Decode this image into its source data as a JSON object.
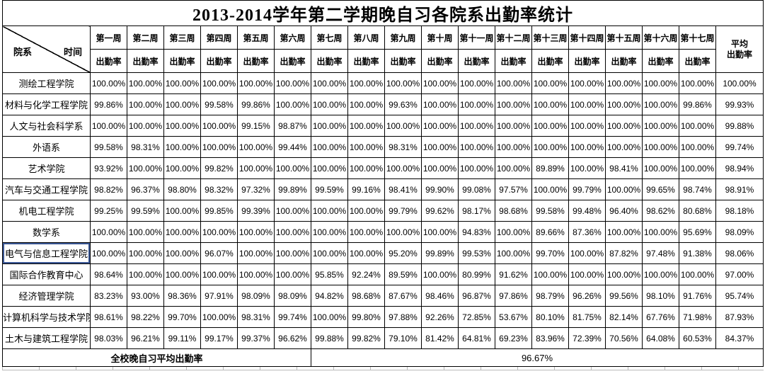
{
  "title": "2013-2014学年第二学期晚自习各院系出勤率统计",
  "header": {
    "corner": {
      "row_label": "院系",
      "col_label": "时间"
    },
    "weeks": [
      "第一周",
      "第二周",
      "第三周",
      "第四周",
      "第五周",
      "第六周",
      "第七周",
      "第八周",
      "第九周",
      "第十周",
      "第十一周",
      "第十二周",
      "第十三周",
      "第十四周",
      "第十五周",
      "第十六周",
      "第十七周"
    ],
    "sub_label": "出勤率",
    "avg_lines": [
      "平均",
      "出勤率"
    ]
  },
  "selection": {
    "department": "电气与信息工程学院"
  },
  "rows": [
    {
      "name": "测绘工程学院",
      "values": [
        "100.00%",
        "100.00%",
        "100.00%",
        "100.00%",
        "100.00%",
        "100.00%",
        "100.00%",
        "100.00%",
        "100.00%",
        "100.00%",
        "100.00%",
        "100.00%",
        "100.00%",
        "100.00%",
        "100.00%",
        "100.00%",
        "100.00%",
        "100.00%"
      ]
    },
    {
      "name": "材料与化学工程学院",
      "values": [
        "99.86%",
        "100.00%",
        "100.00%",
        "99.58%",
        "99.86%",
        "100.00%",
        "100.00%",
        "100.00%",
        "99.63%",
        "100.00%",
        "100.00%",
        "100.00%",
        "100.00%",
        "100.00%",
        "100.00%",
        "100.00%",
        "99.86%",
        "99.93%"
      ]
    },
    {
      "name": "人文与社会科学系",
      "values": [
        "100.00%",
        "100.00%",
        "100.00%",
        "100.00%",
        "99.15%",
        "98.87%",
        "100.00%",
        "100.00%",
        "100.00%",
        "100.00%",
        "100.00%",
        "100.00%",
        "100.00%",
        "100.00%",
        "100.00%",
        "100.00%",
        "100.00%",
        "99.88%"
      ]
    },
    {
      "name": "外语系",
      "values": [
        "99.58%",
        "98.31%",
        "100.00%",
        "100.00%",
        "100.00%",
        "99.44%",
        "100.00%",
        "100.00%",
        "98.31%",
        "100.00%",
        "100.00%",
        "100.00%",
        "100.00%",
        "100.00%",
        "100.00%",
        "100.00%",
        "100.00%",
        "99.74%"
      ]
    },
    {
      "name": "艺术学院",
      "values": [
        "93.92%",
        "100.00%",
        "100.00%",
        "99.82%",
        "100.00%",
        "100.00%",
        "100.00%",
        "100.00%",
        "100.00%",
        "100.00%",
        "100.00%",
        "100.00%",
        "89.89%",
        "100.00%",
        "98.41%",
        "100.00%",
        "100.00%",
        "98.94%"
      ]
    },
    {
      "name": "汽车与交通工程学院",
      "values": [
        "98.82%",
        "96.37%",
        "98.80%",
        "98.32%",
        "97.32%",
        "99.89%",
        "99.59%",
        "99.16%",
        "98.41%",
        "99.90%",
        "99.08%",
        "97.57%",
        "100.00%",
        "99.79%",
        "100.00%",
        "99.65%",
        "98.74%",
        "98.91%"
      ]
    },
    {
      "name": "机电工程学院",
      "values": [
        "99.25%",
        "99.59%",
        "100.00%",
        "99.85%",
        "99.39%",
        "100.00%",
        "100.00%",
        "100.00%",
        "99.79%",
        "99.62%",
        "98.17%",
        "98.68%",
        "99.58%",
        "99.48%",
        "96.40%",
        "98.62%",
        "80.68%",
        "98.18%"
      ]
    },
    {
      "name": "数学系",
      "values": [
        "100.00%",
        "100.00%",
        "100.00%",
        "100.00%",
        "100.00%",
        "100.00%",
        "100.00%",
        "100.00%",
        "100.00%",
        "100.00%",
        "94.83%",
        "100.00%",
        "89.66%",
        "87.36%",
        "100.00%",
        "100.00%",
        "95.69%",
        "98.09%"
      ]
    },
    {
      "name": "电气与信息工程学院",
      "values": [
        "100.00%",
        "100.00%",
        "100.00%",
        "96.07%",
        "100.00%",
        "100.00%",
        "100.00%",
        "100.00%",
        "95.20%",
        "99.89%",
        "99.53%",
        "100.00%",
        "99.70%",
        "100.00%",
        "87.82%",
        "97.48%",
        "91.38%",
        "98.06%"
      ]
    },
    {
      "name": "国际合作教育中心",
      "values": [
        "98.64%",
        "100.00%",
        "100.00%",
        "100.00%",
        "100.00%",
        "100.00%",
        "95.85%",
        "92.24%",
        "89.59%",
        "100.00%",
        "80.99%",
        "91.62%",
        "100.00%",
        "100.00%",
        "100.00%",
        "100.00%",
        "100.00%",
        "97.00%"
      ]
    },
    {
      "name": "经济管理学院",
      "values": [
        "83.23%",
        "93.00%",
        "98.36%",
        "97.91%",
        "98.09%",
        "98.09%",
        "94.82%",
        "98.68%",
        "87.67%",
        "98.46%",
        "96.87%",
        "97.86%",
        "98.79%",
        "96.26%",
        "99.56%",
        "98.10%",
        "91.76%",
        "95.74%"
      ]
    },
    {
      "name": "计算机科学与技术学院",
      "values": [
        "98.61%",
        "98.22%",
        "99.70%",
        "100.00%",
        "98.31%",
        "99.74%",
        "100.00%",
        "99.80%",
        "97.88%",
        "92.26%",
        "72.85%",
        "53.67%",
        "80.10%",
        "81.75%",
        "82.14%",
        "67.76%",
        "71.98%",
        "87.93%"
      ]
    },
    {
      "name": "土木与建筑工程学院",
      "values": [
        "98.03%",
        "96.21%",
        "99.11%",
        "99.17%",
        "99.37%",
        "96.62%",
        "99.88%",
        "99.82%",
        "79.10%",
        "81.42%",
        "64.81%",
        "69.23%",
        "83.96%",
        "72.39%",
        "70.56%",
        "64.08%",
        "60.53%",
        "84.37%"
      ]
    }
  ],
  "footer": {
    "label": "全校晚自习平均出勤率",
    "value": "96.67%"
  }
}
